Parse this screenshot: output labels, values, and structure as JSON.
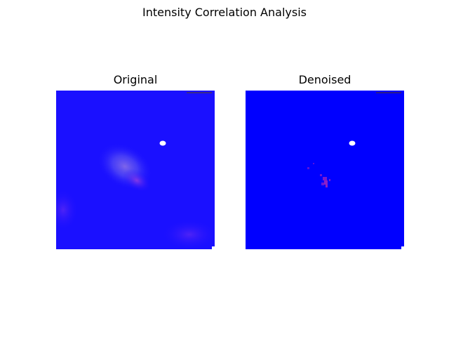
{
  "figure": {
    "suptitle": "Intensity Correlation Analysis"
  },
  "chart_data": {
    "type": "heatmap",
    "title": "Intensity Correlation Analysis",
    "panels": [
      {
        "title": "Original",
        "axes": "off",
        "base_color": "#1a10ff"
      },
      {
        "title": "Denoised",
        "axes": "off",
        "base_color": "#0000ff"
      }
    ]
  }
}
